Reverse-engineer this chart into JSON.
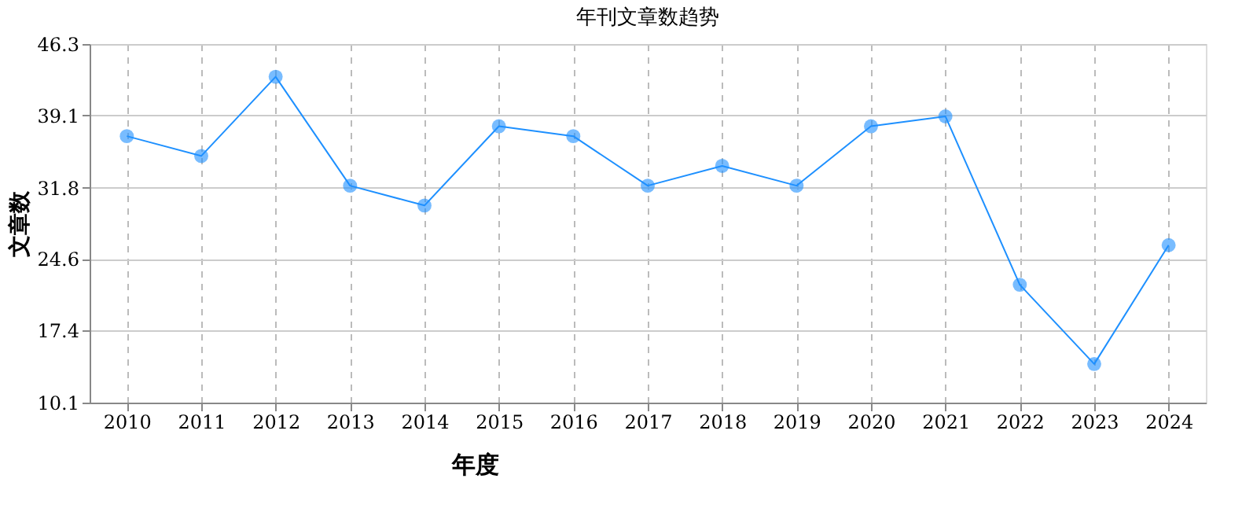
{
  "chart_data": {
    "type": "line",
    "title": "年刊文章数趋势",
    "xlabel": "年度",
    "ylabel": "文章数",
    "categories": [
      "2010",
      "2011",
      "2012",
      "2013",
      "2014",
      "2015",
      "2016",
      "2017",
      "2018",
      "2019",
      "2020",
      "2021",
      "2022",
      "2023",
      "2024"
    ],
    "series": [
      {
        "color": "#1e90ff",
        "values": [
          37,
          35,
          43,
          32,
          30,
          38,
          37,
          32,
          34,
          32,
          38,
          39,
          22,
          14,
          26
        ]
      }
    ],
    "ylim": [
      10.1,
      46.3
    ],
    "yticks": [
      10.1,
      17.4,
      24.6,
      31.8,
      39.1,
      46.3
    ],
    "grid": true,
    "marker": "circle",
    "line_style": "solid"
  }
}
